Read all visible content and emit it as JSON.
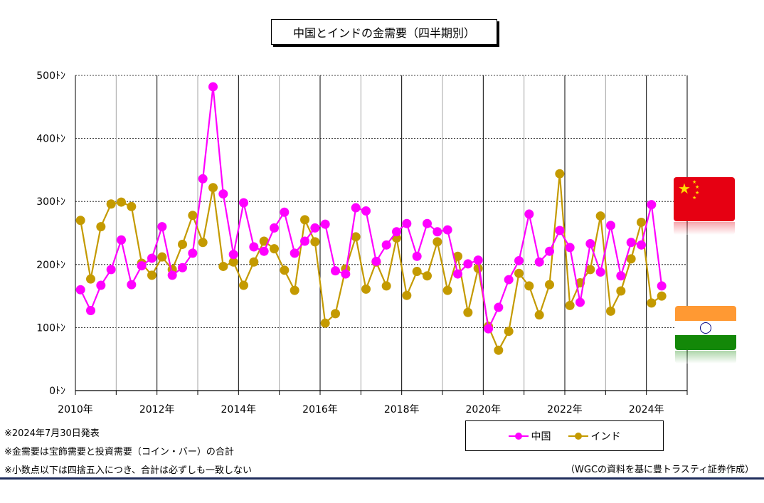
{
  "title": "中国とインドの金需要（四半期別）",
  "notes": [
    "※2024年7月30日発表",
    "※金需要は宝飾需要と投資需要（コイン・バー）の合計",
    "※小数点以下は四捨五入につき、合計は必ずしも一致しない"
  ],
  "source": "（WGCの資料を基に豊トラスティ証券作成）",
  "flags": [
    {
      "name": "China",
      "icon": "china-flag-icon"
    },
    {
      "name": "India",
      "icon": "india-flag-icon"
    }
  ],
  "chart_data": {
    "type": "line",
    "title": "中国とインドの金需要（四半期別）",
    "x": [
      "2010Q1",
      "2010Q2",
      "2010Q3",
      "2010Q4",
      "2011Q1",
      "2011Q2",
      "2011Q3",
      "2011Q4",
      "2012Q1",
      "2012Q2",
      "2012Q3",
      "2012Q4",
      "2013Q1",
      "2013Q2",
      "2013Q3",
      "2013Q4",
      "2014Q1",
      "2014Q2",
      "2014Q3",
      "2014Q4",
      "2015Q1",
      "2015Q2",
      "2015Q3",
      "2015Q4",
      "2016Q1",
      "2016Q2",
      "2016Q3",
      "2016Q4",
      "2017Q1",
      "2017Q2",
      "2017Q3",
      "2017Q4",
      "2018Q1",
      "2018Q2",
      "2018Q3",
      "2018Q4",
      "2019Q1",
      "2019Q2",
      "2019Q3",
      "2019Q4",
      "2020Q1",
      "2020Q2",
      "2020Q3",
      "2020Q4",
      "2021Q1",
      "2021Q2",
      "2021Q3",
      "2021Q4",
      "2022Q1",
      "2022Q2",
      "2022Q3",
      "2022Q4",
      "2023Q1",
      "2023Q2",
      "2023Q3",
      "2023Q4",
      "2024Q1",
      "2024Q2"
    ],
    "x_tick_labels": [
      "2010年",
      "2012年",
      "2014年",
      "2016年",
      "2018年",
      "2020年",
      "2022年",
      "2024年"
    ],
    "y_tick_labels": [
      "0ﾄﾝ",
      "100ﾄﾝ",
      "200ﾄﾝ",
      "300ﾄﾝ",
      "400ﾄﾝ",
      "500ﾄﾝ"
    ],
    "ylim": [
      0,
      500
    ],
    "y_ticks": [
      0,
      100,
      200,
      300,
      400,
      500
    ],
    "grid": true,
    "legend_position": "bottom-right",
    "series": [
      {
        "name": "中国",
        "color": "#ff00ff",
        "values": [
          160,
          127,
          167,
          192,
          239,
          168,
          198,
          210,
          260,
          183,
          195,
          218,
          336,
          482,
          312,
          216,
          298,
          228,
          221,
          258,
          283,
          218,
          237,
          258,
          264,
          190,
          185,
          290,
          285,
          205,
          231,
          252,
          265,
          213,
          265,
          252,
          255,
          185,
          201,
          207,
          98,
          132,
          176,
          206,
          280,
          204,
          221,
          254,
          227,
          140,
          233,
          188,
          262,
          182,
          235,
          231,
          295,
          166
        ]
      },
      {
        "name": "インド",
        "color": "#c49a00",
        "values": [
          270,
          177,
          260,
          296,
          299,
          292,
          202,
          183,
          212,
          192,
          232,
          278,
          235,
          322,
          197,
          204,
          167,
          204,
          237,
          225,
          191,
          159,
          271,
          236,
          107,
          122,
          193,
          244,
          161,
          204,
          166,
          242,
          151,
          189,
          182,
          236,
          159,
          213,
          124,
          194,
          102,
          64,
          94,
          186,
          166,
          120,
          168,
          344,
          135,
          171,
          192,
          277,
          126,
          158,
          209,
          267,
          139,
          150
        ]
      }
    ]
  }
}
